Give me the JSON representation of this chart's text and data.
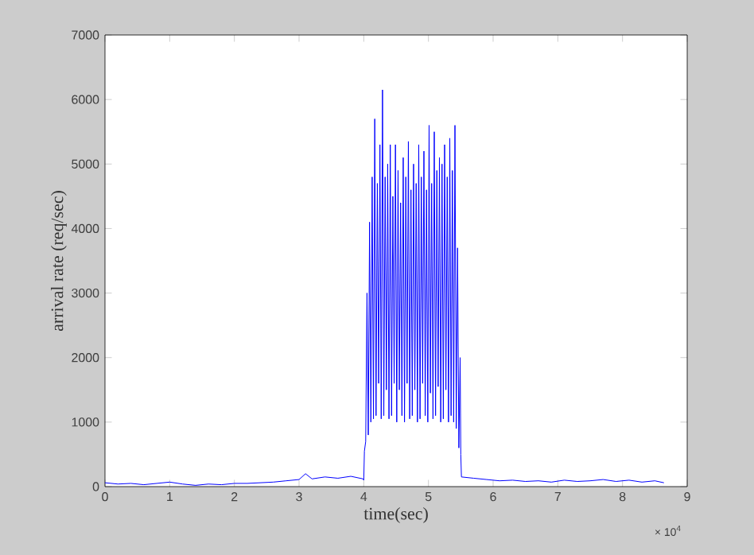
{
  "chart_data": {
    "type": "line",
    "xlabel": "time(sec)",
    "ylabel": "arrival rate (req/sec)",
    "color": "#0000ff",
    "x": [
      0,
      0.2,
      0.4,
      0.6,
      0.8,
      1.0,
      1.2,
      1.4,
      1.6,
      1.8,
      2.0,
      2.2,
      2.4,
      2.6,
      2.8,
      3.0,
      3.1,
      3.2,
      3.4,
      3.6,
      3.8,
      3.99,
      4.0,
      4.01,
      4.03,
      4.05,
      4.07,
      4.09,
      4.11,
      4.13,
      4.15,
      4.17,
      4.19,
      4.21,
      4.23,
      4.25,
      4.27,
      4.29,
      4.31,
      4.33,
      4.35,
      4.37,
      4.39,
      4.41,
      4.43,
      4.45,
      4.47,
      4.49,
      4.51,
      4.53,
      4.55,
      4.57,
      4.59,
      4.61,
      4.63,
      4.65,
      4.67,
      4.69,
      4.71,
      4.73,
      4.75,
      4.77,
      4.79,
      4.81,
      4.83,
      4.85,
      4.87,
      4.89,
      4.91,
      4.93,
      4.95,
      4.97,
      4.99,
      5.01,
      5.03,
      5.05,
      5.07,
      5.09,
      5.11,
      5.13,
      5.15,
      5.17,
      5.19,
      5.21,
      5.23,
      5.25,
      5.27,
      5.29,
      5.31,
      5.33,
      5.35,
      5.37,
      5.39,
      5.41,
      5.43,
      5.45,
      5.47,
      5.49,
      5.5,
      5.51,
      5.7,
      5.9,
      6.1,
      6.3,
      6.5,
      6.7,
      6.9,
      7.1,
      7.3,
      7.5,
      7.7,
      7.9,
      8.1,
      8.3,
      8.5,
      8.64
    ],
    "values": [
      60,
      40,
      50,
      30,
      50,
      70,
      40,
      20,
      40,
      30,
      50,
      50,
      60,
      70,
      90,
      110,
      200,
      120,
      150,
      130,
      160,
      120,
      100,
      550,
      700,
      3000,
      800,
      4100,
      1000,
      4800,
      1050,
      5700,
      1100,
      4700,
      1600,
      5300,
      1050,
      6150,
      1100,
      4800,
      1500,
      5000,
      1050,
      5300,
      1100,
      4500,
      1600,
      5300,
      1000,
      4900,
      1500,
      4400,
      1100,
      5100,
      1000,
      4800,
      1600,
      5350,
      1050,
      4600,
      1100,
      5000,
      1500,
      4700,
      1000,
      5300,
      1050,
      4800,
      1600,
      5200,
      1100,
      4600,
      1000,
      5600,
      1450,
      4700,
      1050,
      5500,
      1100,
      4900,
      1550,
      5100,
      1000,
      5000,
      1050,
      5300,
      1500,
      4800,
      1000,
      5400,
      1100,
      4900,
      1000,
      5600,
      900,
      3700,
      600,
      2000,
      500,
      150,
      130,
      110,
      90,
      100,
      80,
      90,
      70,
      100,
      80,
      90,
      110,
      80,
      100,
      70,
      90,
      60
    ],
    "xlim": [
      0,
      9
    ],
    "ylim": [
      0,
      7000
    ],
    "xticks": [
      0,
      1,
      2,
      3,
      4,
      5,
      6,
      7,
      8,
      9
    ],
    "yticks": [
      0,
      1000,
      2000,
      3000,
      4000,
      5000,
      6000,
      7000
    ],
    "annotations": [
      "× 10$^{4}$"
    ]
  }
}
